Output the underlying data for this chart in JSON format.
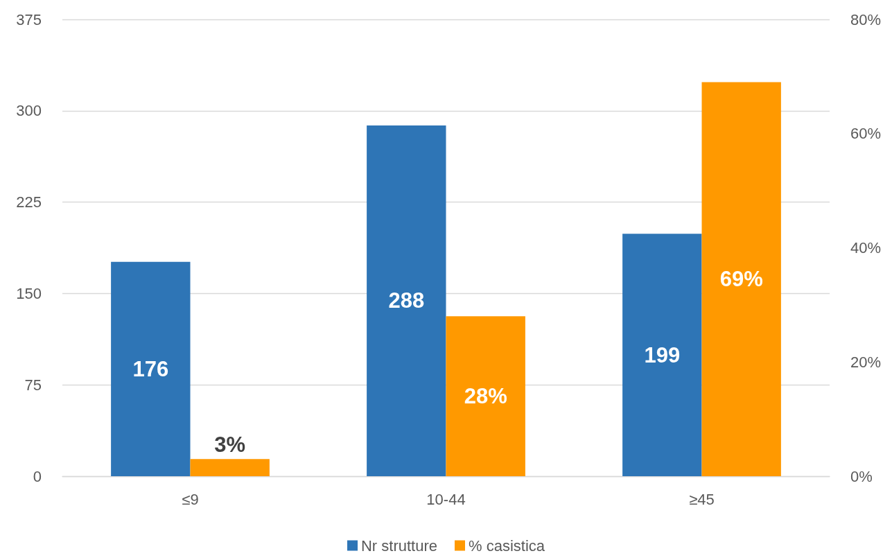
{
  "chart_data": {
    "type": "bar",
    "categories": [
      "≤9",
      "10-44",
      "≥45"
    ],
    "series": [
      {
        "name": "Nr strutture",
        "color": "#2e75b6",
        "values": [
          176,
          288,
          199
        ],
        "value_labels": [
          "176",
          "288",
          "199"
        ]
      },
      {
        "name": "% casistica",
        "color": "#ff9900",
        "values": [
          3,
          28,
          69
        ],
        "axis": "y2",
        "value_labels": [
          "3%",
          "28%",
          "69%"
        ]
      }
    ],
    "ylim": [
      0,
      375
    ],
    "yticks": [
      0,
      75,
      150,
      225,
      300,
      375
    ],
    "y2lim": [
      0,
      80
    ],
    "y2ticks": [
      {
        "value": 0,
        "label": "0%"
      },
      {
        "value": 20,
        "label": "20%"
      },
      {
        "value": 40,
        "label": "40%"
      },
      {
        "value": 60,
        "label": "60%"
      },
      {
        "value": 80,
        "label": "80%"
      }
    ],
    "grid": "y",
    "legend": "bottom"
  }
}
